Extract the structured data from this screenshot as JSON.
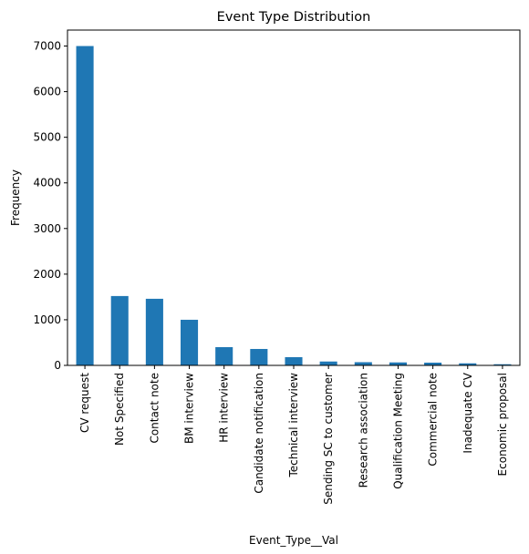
{
  "chart_data": {
    "type": "bar",
    "title": "Event Type Distribution",
    "xlabel": "Event_Type__Val",
    "ylabel": "Frequency",
    "categories": [
      "CV request",
      "Not Specified",
      "Contact note",
      "BM interview",
      "HR interview",
      "Candidate notification",
      "Technical interview",
      "Sending SC to customer",
      "Research association",
      "Qualification Meeting",
      "Commercial note",
      "Inadequate CV",
      "Economic proposal"
    ],
    "values": [
      7000,
      1520,
      1460,
      1000,
      400,
      360,
      180,
      85,
      70,
      65,
      60,
      45,
      25
    ],
    "ylim": [
      0,
      7350
    ],
    "yticks": [
      0,
      1000,
      2000,
      3000,
      4000,
      5000,
      6000,
      7000
    ],
    "bar_color": "#1f77b4",
    "grid": false,
    "legend": "none"
  }
}
